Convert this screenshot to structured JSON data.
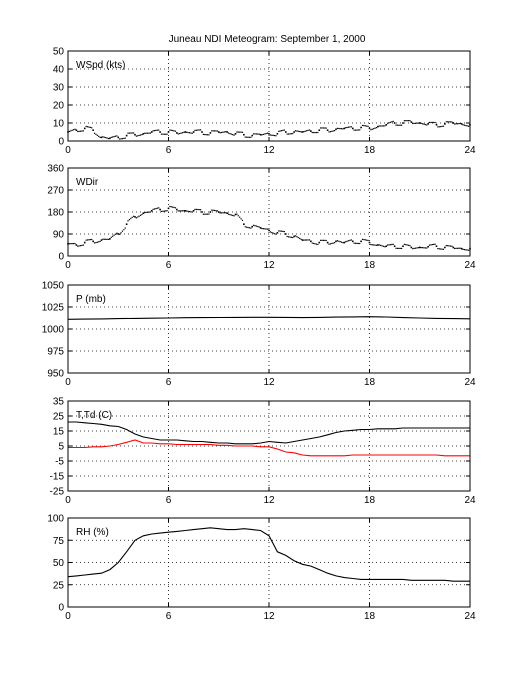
{
  "figure": {
    "title": "Juneau NDI Meteogram: September  1, 2000"
  },
  "chart_data": [
    {
      "type": "scatter",
      "label": "WSpd (kts)",
      "xlim": [
        0,
        24
      ],
      "ylim": [
        0,
        50
      ],
      "xticks": [
        0,
        6,
        12,
        18,
        24
      ],
      "yticks": [
        0,
        10,
        20,
        30,
        40,
        50
      ],
      "grid": true,
      "series": [
        {
          "color": "#000000",
          "x": [
            0,
            0.5,
            1,
            1.5,
            2,
            2.5,
            3,
            3.5,
            4,
            4.5,
            5,
            5.5,
            6,
            6.5,
            7,
            7.5,
            8,
            8.5,
            9,
            9.5,
            10,
            10.5,
            11,
            11.5,
            12,
            12.5,
            13,
            13.5,
            14,
            14.5,
            15,
            15.5,
            16,
            16.5,
            17,
            17.5,
            18,
            18.5,
            19,
            19.5,
            20,
            20.5,
            21,
            21.5,
            22,
            22.5,
            23,
            23.5,
            24
          ],
          "values": [
            5,
            6,
            7,
            6,
            2,
            1.5,
            2,
            3,
            3.5,
            4,
            5,
            5,
            5,
            4.5,
            5,
            5,
            5,
            4.5,
            5,
            5,
            4,
            3.5,
            3,
            3.5,
            4,
            4,
            5,
            5,
            5,
            5.5,
            6,
            6,
            6.5,
            7,
            7,
            7.5,
            7,
            8,
            9,
            10,
            10,
            10.5,
            10,
            9.5,
            9,
            9.5,
            10,
            9.5,
            9
          ]
        }
      ]
    },
    {
      "type": "scatter",
      "label": "WDir",
      "xlim": [
        0,
        24
      ],
      "ylim": [
        0,
        360
      ],
      "xticks": [
        0,
        6,
        12,
        18,
        24
      ],
      "yticks": [
        0,
        90,
        180,
        270,
        360
      ],
      "grid": true,
      "series": [
        {
          "color": "#000000",
          "x": [
            0,
            0.5,
            1,
            1.5,
            2,
            2.5,
            3,
            3.5,
            4,
            4.5,
            5,
            5.5,
            6,
            6.5,
            7,
            7.5,
            8,
            8.5,
            9,
            9.5,
            10,
            10.5,
            11,
            11.5,
            12,
            12.5,
            13,
            13.5,
            14,
            14.5,
            15,
            15.5,
            16,
            16.5,
            17,
            17.5,
            18,
            18.5,
            19,
            19.5,
            20,
            20.5,
            21,
            21.5,
            22,
            22.5,
            23,
            23.5,
            24
          ],
          "values": [
            50,
            45,
            55,
            60,
            65,
            70,
            90,
            130,
            160,
            175,
            185,
            190,
            195,
            190,
            185,
            185,
            180,
            180,
            180,
            175,
            170,
            130,
            120,
            115,
            105,
            95,
            90,
            80,
            65,
            60,
            55,
            55,
            60,
            55,
            60,
            60,
            55,
            45,
            40,
            40,
            40,
            35,
            35,
            38,
            40,
            35,
            35,
            30,
            30
          ]
        }
      ]
    },
    {
      "type": "line",
      "label": "P (mb)",
      "xlim": [
        0,
        24
      ],
      "ylim": [
        950,
        1050
      ],
      "xticks": [
        0,
        6,
        12,
        18,
        24
      ],
      "yticks": [
        950,
        975,
        1000,
        1025,
        1050
      ],
      "grid": true,
      "series": [
        {
          "color": "#000000",
          "x": [
            0,
            1,
            2,
            3,
            4,
            5,
            6,
            7,
            8,
            9,
            10,
            11,
            12,
            13,
            14,
            15,
            16,
            17,
            18,
            19,
            20,
            21,
            22,
            23,
            24
          ],
          "values": [
            1011,
            1011.2,
            1011.5,
            1011.8,
            1012,
            1012.3,
            1012.5,
            1012.8,
            1013,
            1013.1,
            1013.2,
            1013.3,
            1013.3,
            1013.2,
            1013,
            1013.2,
            1013.5,
            1013.8,
            1014,
            1013.6,
            1013,
            1012.5,
            1012,
            1011.8,
            1011.6
          ]
        }
      ]
    },
    {
      "type": "line",
      "label": "T,Td (C)",
      "xlim": [
        0,
        24
      ],
      "ylim": [
        -25,
        35
      ],
      "xticks": [
        0,
        6,
        12,
        18,
        24
      ],
      "yticks": [
        -25,
        -15,
        -5,
        5,
        15,
        25,
        35
      ],
      "grid": true,
      "series": [
        {
          "color": "#000000",
          "x": [
            0,
            0.5,
            1,
            1.5,
            2,
            2.5,
            3,
            3.5,
            4,
            4.5,
            5,
            5.5,
            6,
            6.5,
            7,
            7.5,
            8,
            8.5,
            9,
            9.5,
            10,
            10.5,
            11,
            11.5,
            12,
            12.5,
            13,
            13.5,
            14,
            14.5,
            15,
            15.5,
            16,
            16.5,
            17,
            17.5,
            18,
            18.5,
            19,
            19.5,
            20,
            20.5,
            21,
            21.5,
            22,
            22.5,
            23,
            23.5,
            24
          ],
          "values": [
            21,
            21,
            20.5,
            20,
            19.5,
            18.5,
            18,
            16,
            13,
            11,
            10,
            9,
            9,
            9,
            8.5,
            8,
            8,
            7.5,
            7,
            7,
            6.5,
            6.5,
            6.5,
            7,
            8,
            7.5,
            7,
            8,
            9,
            10,
            11,
            12.5,
            14,
            15,
            15.5,
            16,
            16,
            16.5,
            16.5,
            16.5,
            17,
            17,
            17,
            17,
            17,
            17,
            17,
            17,
            17
          ]
        },
        {
          "color": "#ff0000",
          "x": [
            0,
            0.5,
            1,
            1.5,
            2,
            2.5,
            3,
            3.5,
            4,
            4.5,
            5,
            5.5,
            6,
            6.5,
            7,
            7.5,
            8,
            8.5,
            9,
            9.5,
            10,
            10.5,
            11,
            11.5,
            12,
            12.5,
            13,
            13.5,
            14,
            14.5,
            15,
            15.5,
            16,
            16.5,
            17,
            17.5,
            18,
            18.5,
            19,
            19.5,
            20,
            20.5,
            21,
            21.5,
            22,
            22.5,
            23,
            23.5,
            24
          ],
          "values": [
            4,
            4,
            4,
            4.5,
            4.5,
            5,
            6,
            7.5,
            9,
            7,
            7,
            6.5,
            6.5,
            6,
            6,
            6,
            6,
            6,
            5.5,
            5.5,
            5,
            5,
            5,
            4.5,
            4.5,
            3,
            1,
            0.5,
            -1,
            -1.5,
            -1.5,
            -1.5,
            -1.5,
            -1.5,
            -1,
            -1,
            -1,
            -1,
            -1,
            -1,
            -1,
            -1,
            -1,
            -1,
            -1,
            -1.5,
            -1.5,
            -1.5,
            -1.5
          ]
        }
      ]
    },
    {
      "type": "line",
      "label": "RH (%)",
      "xlim": [
        0,
        24
      ],
      "ylim": [
        0,
        100
      ],
      "xticks": [
        0,
        6,
        12,
        18,
        24
      ],
      "yticks": [
        0,
        25,
        50,
        75,
        100
      ],
      "grid": true,
      "series": [
        {
          "color": "#000000",
          "x": [
            0,
            0.5,
            1,
            1.5,
            2,
            2.5,
            3,
            3.5,
            4,
            4.5,
            5,
            5.5,
            6,
            6.5,
            7,
            7.5,
            8,
            8.5,
            9,
            9.5,
            10,
            10.5,
            11,
            11.5,
            12,
            12.5,
            13,
            13.5,
            14,
            14.5,
            15,
            15.5,
            16,
            16.5,
            17,
            17.5,
            18,
            18.5,
            19,
            19.5,
            20,
            20.5,
            21,
            21.5,
            22,
            22.5,
            23,
            23.5,
            24
          ],
          "values": [
            34,
            35,
            36,
            37,
            38,
            42,
            50,
            62,
            75,
            80,
            82,
            83,
            84,
            85,
            86,
            87,
            88,
            89,
            88,
            87,
            87,
            88,
            87,
            86,
            80,
            62,
            58,
            52,
            48,
            46,
            42,
            38,
            35,
            33,
            32,
            31,
            31,
            31,
            31,
            31,
            31,
            30,
            30,
            30,
            30,
            30,
            29,
            29,
            29
          ]
        }
      ]
    }
  ]
}
